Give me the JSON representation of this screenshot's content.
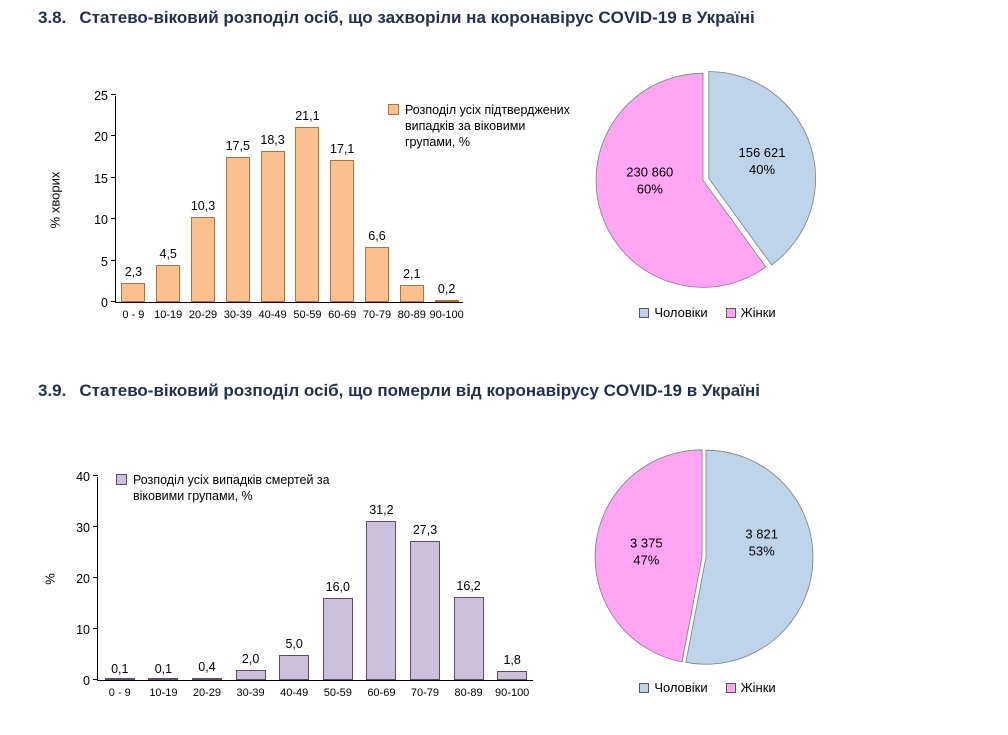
{
  "sections": [
    {
      "number": "3.8.",
      "title": "Статево-віковий розподіл осіб, що захворіли на коронавірус COVID-19 в Україні"
    },
    {
      "number": "3.9.",
      "title": "Статево-віковий розподіл осіб, що померли від коронавірусу COVID-19 в Україні"
    }
  ],
  "colors": {
    "title": "#1F3050",
    "male": "#BDD4EA",
    "female": "#FFA5F3",
    "confirmed_bars": "#FAC090",
    "deaths_bars": "#CCC1DA"
  },
  "chart_data": [
    {
      "type": "bar",
      "title": "",
      "legend": "Розподіл усіх підтверджених випадків за віковими групами, %",
      "legend_position": "top-right",
      "xlabel": "",
      "ylabel": "% хворих",
      "categories": [
        "0 - 9",
        "10-19",
        "20-29",
        "30-39",
        "40-49",
        "50-59",
        "60-69",
        "70-79",
        "80-89",
        "90-100"
      ],
      "values": [
        2.3,
        4.5,
        10.3,
        17.5,
        18.3,
        21.1,
        17.1,
        6.6,
        2.1,
        0.2
      ],
      "labels": [
        "2,3",
        "4,5",
        "10,3",
        "17,5",
        "18,3",
        "21,1",
        "17,1",
        "6,6",
        "2,1",
        "0,2"
      ],
      "ylim": [
        0,
        25
      ],
      "yticks": [
        0,
        5,
        10,
        15,
        20,
        25
      ],
      "grid": false,
      "bar_fill": "#FAC090",
      "bar_stroke": "#B8712F"
    },
    {
      "type": "pie",
      "legend_position": "bottom",
      "slices": [
        {
          "name": "Чоловіки",
          "value": 156621,
          "value_label": "156 621",
          "percent": 40,
          "percent_label": "40%",
          "color": "#BDD4EA"
        },
        {
          "name": "Жінки",
          "value": 230860,
          "value_label": "230 860",
          "percent": 60,
          "percent_label": "60%",
          "color": "#FFA5F3"
        }
      ]
    },
    {
      "type": "bar",
      "title": "",
      "legend": "Розподіл усіх випадків смертей за віковими групами, %",
      "legend_position": "top-left",
      "xlabel": "",
      "ylabel": "%",
      "categories": [
        "0 - 9",
        "10-19",
        "20-29",
        "30-39",
        "40-49",
        "50-59",
        "60-69",
        "70-79",
        "80-89",
        "90-100"
      ],
      "values": [
        0.1,
        0.1,
        0.4,
        2.0,
        5.0,
        16.0,
        31.2,
        27.3,
        16.2,
        1.8
      ],
      "labels": [
        "0,1",
        "0,1",
        "0,4",
        "2,0",
        "5,0",
        "16,0",
        "31,2",
        "27,3",
        "16,2",
        "1,8"
      ],
      "ylim": [
        0,
        40
      ],
      "yticks": [
        0,
        10,
        20,
        30,
        40
      ],
      "grid": false,
      "bar_fill": "#CCC1DA",
      "bar_stroke": "#5F497A"
    },
    {
      "type": "pie",
      "legend_position": "bottom",
      "slices": [
        {
          "name": "Чоловіки",
          "value": 3821,
          "value_label": "3 821",
          "percent": 53,
          "percent_label": "53%",
          "color": "#BDD4EA"
        },
        {
          "name": "Жінки",
          "value": 3375,
          "value_label": "3 375",
          "percent": 47,
          "percent_label": "47%",
          "color": "#FFA5F3"
        }
      ]
    }
  ]
}
